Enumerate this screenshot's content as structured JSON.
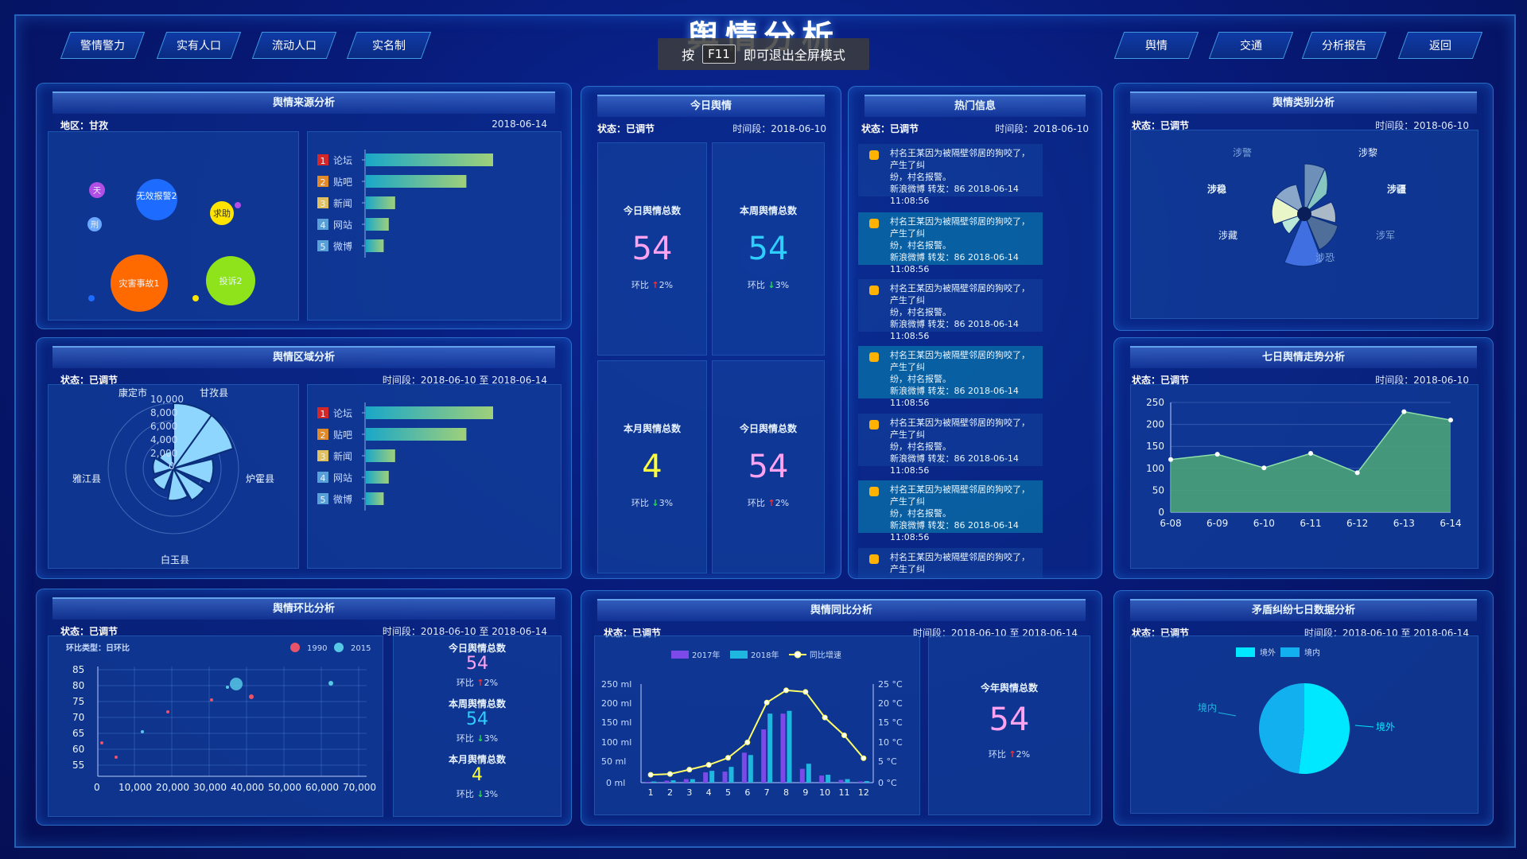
{
  "title": "舆情分析",
  "fullscreen_hint": {
    "press": "按",
    "key": "F11",
    "msg": "即可退出全屏模式"
  },
  "nav_left": [
    "警情警力",
    "实有人口",
    "流动人口",
    "实名制"
  ],
  "nav_right": [
    "舆情",
    "交通",
    "分析报告",
    "返回"
  ],
  "source": {
    "title": "舆情来源分析",
    "region": "地区：甘孜",
    "date": "2018-06-14",
    "bubbles": [
      {
        "label": "无效报警2",
        "color": "#1e6bff"
      },
      {
        "label": "灾害事故1",
        "color": "#ff6a00"
      },
      {
        "label": "投诉2",
        "color": "#8fe31a"
      },
      {
        "label": "求助",
        "color": "#ffe400"
      },
      {
        "label": "天",
        "color": "#b04ee6"
      },
      {
        "label": "刑",
        "color": "#6aa8ff"
      }
    ]
  },
  "rank_chart": {
    "items": [
      {
        "rank": "1",
        "name": "论坛",
        "value": 100,
        "color": "#d62728"
      },
      {
        "rank": "2",
        "name": "贴吧",
        "value": 79,
        "color": "#e08a2c"
      },
      {
        "rank": "3",
        "name": "新闻",
        "value": 23,
        "color": "#e0c060"
      },
      {
        "rank": "4",
        "name": "网站",
        "value": 18,
        "color": "#5aa0d8"
      },
      {
        "rank": "5",
        "name": "微博",
        "value": 14,
        "color": "#5aa0d8"
      }
    ]
  },
  "region": {
    "title": "舆情区域分析",
    "status": "状态：已调节",
    "period": "时间段：2018-06-10 至 2018-06-14",
    "axis_labels": [
      "10,000",
      "8,000",
      "6,000",
      "4,000",
      "2,000",
      "0"
    ],
    "places": [
      "康定市",
      "甘孜县",
      "炉霍县",
      "白玉县",
      "雅江县"
    ]
  },
  "ring": {
    "title": "舆情环比分析",
    "status": "状态：已调节",
    "period": "时间段：2018-06-10 至 2018-06-14",
    "chart_label": "环比类型：日环比",
    "legend": [
      {
        "name": "1990",
        "color": "#e9536a"
      },
      {
        "name": "2015",
        "color": "#57c7e6"
      }
    ],
    "yticks": [
      "85",
      "80",
      "75",
      "70",
      "65",
      "60",
      "55"
    ],
    "xticks": [
      "0",
      "10,000",
      "20,000",
      "30,000",
      "40,000",
      "50,000",
      "60,000",
      "70,000"
    ],
    "stats": [
      {
        "label": "今日舆情总数",
        "value": "54",
        "chg_label": "环比",
        "chg": "2%",
        "dir": "up",
        "color": "#ffa3f0"
      },
      {
        "label": "本周舆情总数",
        "value": "54",
        "chg_label": "环比",
        "chg": "3%",
        "dir": "down",
        "color": "#2ecfff"
      },
      {
        "label": "本月舆情总数",
        "value": "4",
        "chg_label": "环比",
        "chg": "3%",
        "dir": "down",
        "color": "#ffff3a"
      }
    ]
  },
  "today": {
    "title": "今日舆情",
    "status": "状态：已调节",
    "period": "时间段：2018-06-10",
    "cards": [
      {
        "label": "今日舆情总数",
        "value": "54",
        "chg_label": "环比",
        "chg": "2%",
        "dir": "up",
        "color": "#ffa3f0"
      },
      {
        "label": "本周舆情总数",
        "value": "54",
        "chg_label": "环比",
        "chg": "3%",
        "dir": "down",
        "color": "#2ecfff"
      },
      {
        "label": "本月舆情总数",
        "value": "4",
        "chg_label": "环比",
        "chg": "3%",
        "dir": "down",
        "color": "#ffff3a"
      },
      {
        "label": "今日舆情总数",
        "value": "54",
        "chg_label": "环比",
        "chg": "2%",
        "dir": "up",
        "color": "#ffa3f0"
      }
    ]
  },
  "hot": {
    "title": "热门信息",
    "status": "状态：已调节",
    "period": "时间段：2018-06-10",
    "items": [
      {
        "l1": "村名王某因为被隔壁邻居的狗咬了，产生了纠",
        "l2": "纷，村名报警。",
        "l3": "新浪微博 转发：86 2018-06-14 11:08:56"
      },
      {
        "l1": "村名王某因为被隔壁邻居的狗咬了，产生了纠",
        "l2": "纷，村名报警。",
        "l3": "新浪微博 转发：86 2018-06-14 11:08:56"
      },
      {
        "l1": "村名王某因为被隔壁邻居的狗咬了，产生了纠",
        "l2": "纷，村名报警。",
        "l3": "新浪微博 转发：86 2018-06-14 11:08:56"
      },
      {
        "l1": "村名王某因为被隔壁邻居的狗咬了，产生了纠",
        "l2": "纷，村名报警。",
        "l3": "新浪微博 转发：86 2018-06-14 11:08:56"
      },
      {
        "l1": "村名王某因为被隔壁邻居的狗咬了，产生了纠",
        "l2": "纷，村名报警。",
        "l3": "新浪微博 转发：86 2018-06-14 11:08:56"
      },
      {
        "l1": "村名王某因为被隔壁邻居的狗咬了，产生了纠",
        "l2": "纷，村名报警。",
        "l3": "新浪微博 转发：86 2018-06-14 11:08:56"
      },
      {
        "l1": "村名王某因为被隔壁邻居的狗咬了，产生了纠",
        "l2": "",
        "l3": ""
      }
    ]
  },
  "yoy": {
    "title": "舆情同比分析",
    "status": "状态：已调节",
    "period": "时间段：2018-06-10 至 2018-06-14",
    "legend": [
      "2017年",
      "2018年",
      "同比增速"
    ],
    "left_ticks": [
      "250 ml",
      "200 ml",
      "150 ml",
      "100 ml",
      "50 ml",
      "0 ml"
    ],
    "right_ticks": [
      "25 °C",
      "20 °C",
      "15 °C",
      "10 °C",
      "5 °C",
      "0 °C"
    ],
    "months": [
      "1",
      "2",
      "3",
      "4",
      "5",
      "6",
      "7",
      "8",
      "9",
      "10",
      "11",
      "12"
    ],
    "year_stat": {
      "label": "今年舆情总数",
      "value": "54",
      "chg_label": "环比",
      "chg": "2%"
    }
  },
  "category": {
    "title": "舆情类别分析",
    "status": "状态：已调节",
    "period": "时间段：2018-06-10",
    "labels": [
      "涉警",
      "涉黎",
      "涉稳",
      "涉疆",
      "涉藏",
      "涉军",
      "涉恐"
    ]
  },
  "trend": {
    "title": "七日舆情走势分析",
    "status": "状态：已调节",
    "period": "时间段：2018-06-10"
  },
  "dispute": {
    "title": "矛盾纠纷七日数据分析",
    "status": "状态：已调节",
    "period": "时间段：2018-06-10 至 2018-06-14",
    "legend": [
      {
        "name": "境外",
        "color": "#00e8ff"
      },
      {
        "name": "境内",
        "color": "#12b0ee"
      }
    ],
    "labels": {
      "in": "境内",
      "out": "境外"
    }
  },
  "chart_data": [
    {
      "type": "bar",
      "title": "舆情来源分析",
      "categories": [
        "论坛",
        "贴吧",
        "新闻",
        "网站",
        "微博"
      ],
      "values": [
        100,
        79,
        23,
        18,
        14
      ]
    },
    {
      "type": "bar",
      "title": "舆情区域分析",
      "categories": [
        "论坛",
        "贴吧",
        "新闻",
        "网站",
        "微博"
      ],
      "values": [
        100,
        79,
        23,
        18,
        14
      ]
    },
    {
      "type": "bar",
      "title": "舆情同比分析",
      "categories": [
        "1",
        "2",
        "3",
        "4",
        "5",
        "6",
        "7",
        "8",
        "9",
        "10",
        "11",
        "12"
      ],
      "series": [
        {
          "name": "2017年",
          "values": [
            2,
            5,
            9,
            26,
            28,
            76,
            135,
            175,
            35,
            18,
            7,
            3
          ]
        },
        {
          "name": "2018年",
          "values": [
            3,
            6,
            9,
            30,
            40,
            70,
            175,
            182,
            48,
            20,
            9,
            4
          ]
        },
        {
          "name": "同比增速",
          "values": [
            2.0,
            2.2,
            3.3,
            4.5,
            6.3,
            10.2,
            20.3,
            23.4,
            23.0,
            16.5,
            12.0,
            6.2
          ]
        }
      ],
      "ylim": [
        0,
        250
      ],
      "y2lim": [
        0,
        25
      ]
    },
    {
      "type": "area",
      "title": "七日舆情走势分析",
      "x": [
        "6-08",
        "6-09",
        "6-10",
        "6-11",
        "6-12",
        "6-13",
        "6-14"
      ],
      "values": [
        120,
        132,
        101,
        134,
        90,
        229,
        210
      ],
      "ylim": [
        0,
        250
      ]
    },
    {
      "type": "pie",
      "title": "矛盾纠纷七日数据分析",
      "categories": [
        "境外",
        "境内"
      ],
      "values": [
        52,
        48
      ]
    }
  ]
}
